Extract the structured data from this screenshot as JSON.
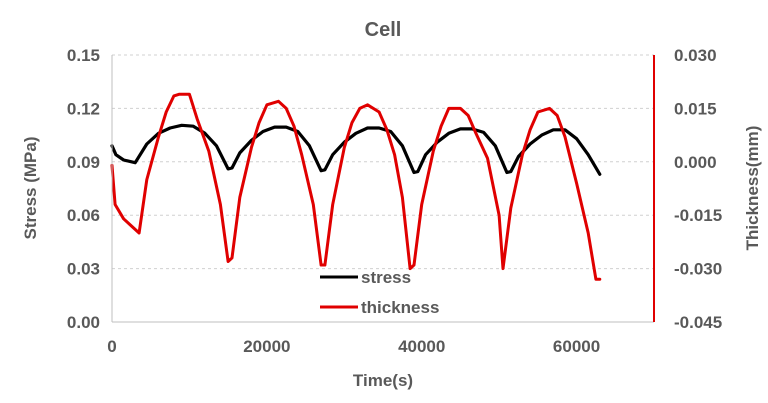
{
  "chart_data": {
    "type": "line",
    "title": "Cell",
    "xlabel": "Time(s)",
    "ylabel": "Stress (MPa)",
    "y2label": "Thickness(mm)",
    "xlim": [
      0,
      70000
    ],
    "xticks": [
      "0",
      "20000",
      "40000",
      "60000"
    ],
    "xtick_values": [
      0,
      20000,
      40000,
      60000
    ],
    "ylim": [
      0,
      0.15
    ],
    "yticks": [
      "0.00",
      "0.03",
      "0.06",
      "0.09",
      "0.12",
      "0.15"
    ],
    "ytick_values": [
      0,
      0.03,
      0.06,
      0.09,
      0.12,
      0.15
    ],
    "y2lim": [
      -0.045,
      0.03
    ],
    "y2ticks": [
      "-0.045",
      "-0.030",
      "-0.015",
      "0.000",
      "0.015",
      "0.030"
    ],
    "y2tick_values": [
      -0.045,
      -0.03,
      -0.015,
      0,
      0.015,
      0.03
    ],
    "grid": true,
    "legend_position": "bottom-center",
    "series": [
      {
        "name": "stress",
        "axis": "left",
        "color": "#000000",
        "x": [
          0,
          500,
          1500,
          3000,
          4500,
          6000,
          7500,
          9000,
          10500,
          12000,
          13500,
          15000,
          15500,
          16500,
          18000,
          19500,
          21000,
          22500,
          24000,
          25500,
          27000,
          27500,
          28500,
          30000,
          31500,
          33000,
          34500,
          36000,
          37500,
          39000,
          39500,
          40500,
          42000,
          43500,
          45000,
          46500,
          48000,
          49500,
          51000,
          51500,
          52500,
          54000,
          55500,
          57000,
          58500,
          60000,
          61500,
          63000
        ],
        "y": [
          0.099,
          0.094,
          0.091,
          0.0895,
          0.1,
          0.106,
          0.109,
          0.1105,
          0.11,
          0.106,
          0.099,
          0.086,
          0.0865,
          0.095,
          0.102,
          0.107,
          0.1095,
          0.1095,
          0.107,
          0.099,
          0.085,
          0.0855,
          0.094,
          0.101,
          0.106,
          0.109,
          0.109,
          0.107,
          0.099,
          0.084,
          0.0845,
          0.094,
          0.101,
          0.106,
          0.1085,
          0.1085,
          0.1065,
          0.099,
          0.084,
          0.0845,
          0.093,
          0.1,
          0.105,
          0.108,
          0.108,
          0.103,
          0.094,
          0.083
        ]
      },
      {
        "name": "thickness",
        "axis": "right",
        "color": "#e00000",
        "x": [
          0,
          400,
          1500,
          3500,
          4500,
          6000,
          7000,
          8000,
          8700,
          10000,
          11000,
          12500,
          14000,
          15000,
          15500,
          16500,
          18000,
          19000,
          20000,
          21500,
          22500,
          23500,
          24500,
          26000,
          27000,
          27500,
          28500,
          30000,
          31000,
          32000,
          33000,
          34500,
          35500,
          36500,
          37500,
          38500,
          39000,
          40000,
          41500,
          42500,
          43500,
          45000,
          46000,
          47000,
          48500,
          50000,
          50500,
          51500,
          53000,
          54000,
          55000,
          56500,
          57500,
          58500,
          60000,
          61500,
          62500,
          63000
        ],
        "y": [
          -0.001,
          -0.012,
          -0.016,
          -0.02,
          -0.005,
          0.007,
          0.014,
          0.0185,
          0.019,
          0.019,
          0.012,
          0.003,
          -0.012,
          -0.028,
          -0.027,
          -0.01,
          0.004,
          0.011,
          0.016,
          0.017,
          0.015,
          0.01,
          0.002,
          -0.012,
          -0.029,
          -0.029,
          -0.012,
          0.004,
          0.011,
          0.015,
          0.016,
          0.014,
          0.009,
          0.002,
          -0.01,
          -0.03,
          -0.029,
          -0.012,
          0.003,
          0.01,
          0.015,
          0.015,
          0.013,
          0.008,
          0.001,
          -0.015,
          -0.03,
          -0.013,
          0.002,
          0.009,
          0.014,
          0.015,
          0.013,
          0.007,
          -0.006,
          -0.02,
          -0.033,
          -0.033
        ]
      }
    ]
  }
}
